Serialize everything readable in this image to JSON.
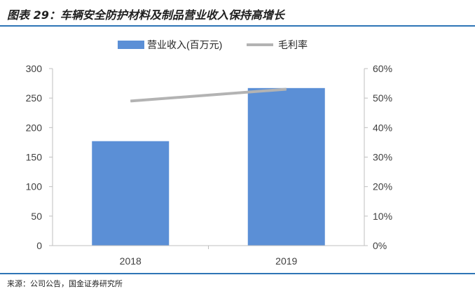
{
  "title": "图表 29：车辆安全防护材料及制品营业收入保持高增长",
  "source": "来源：公司公告，国金证券研究所",
  "colors": {
    "bar": "#5b8fd6",
    "line": "#b3b3b3",
    "accent": "#2e75b6",
    "axis_text": "#404040"
  },
  "chart_data": {
    "type": "bar",
    "categories": [
      "2018",
      "2019"
    ],
    "series": [
      {
        "name": "营业收入(百万元)",
        "type": "bar",
        "axis": "left",
        "values": [
          177,
          267
        ]
      },
      {
        "name": "毛利率",
        "type": "line",
        "axis": "right",
        "values": [
          0.49,
          0.53
        ]
      }
    ],
    "y_left": {
      "min": 0,
      "max": 300,
      "ticks": [
        "0",
        "50",
        "100",
        "150",
        "200",
        "250",
        "300"
      ]
    },
    "y_right": {
      "min": 0,
      "max": 0.6,
      "ticks": [
        "0%",
        "10%",
        "20%",
        "30%",
        "40%",
        "50%",
        "60%"
      ]
    },
    "grid": false,
    "legend_position": "top-center"
  }
}
